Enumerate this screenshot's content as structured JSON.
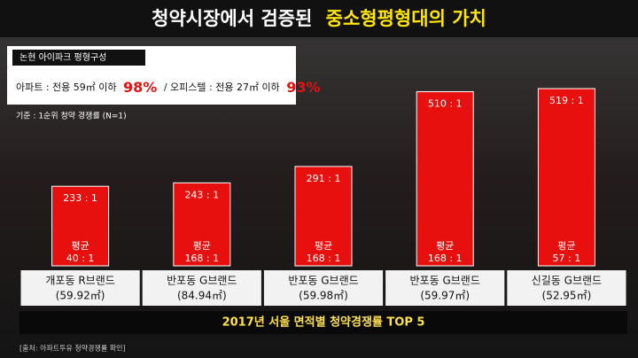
{
  "chart_data": {
    "type": "bar",
    "title": "청약시장에서 검증된",
    "title_highlight": "중소형평형대의 가치",
    "info_title": "논현 아이파크 평형구성",
    "info_apt": "아파트 : 전용 59㎡ 이하",
    "info_apt_share": "98%",
    "info_office": "/ 오피스텔 : 전용 27㎡ 이하",
    "info_office_share": "93%",
    "note": "기준 : 1순위 청약 경쟁률 (N=1)",
    "categories": [
      "개포동 R브랜드",
      "반포동 G브랜드",
      "반포동 G브랜드",
      "반포동 G브랜드",
      "신길동 G브랜드"
    ],
    "areas": [
      "(59.92㎡)",
      "(84.94㎡)",
      "(59.98㎡)",
      "(59.97㎡)",
      "(52.95㎡)"
    ],
    "values": [
      233,
      243,
      291,
      510,
      519
    ],
    "value_labels": [
      "233 : 1",
      "243 : 1",
      "291 : 1",
      "510 : 1",
      "519 : 1"
    ],
    "average_title": "평균",
    "average_labels": [
      "40 : 1",
      "168 : 1",
      "168 : 1",
      "168 : 1",
      "57 : 1"
    ],
    "color": "#e8100f",
    "caption": "2017년 서울 면적별 청약경쟁률 TOP 5",
    "source": "[출처: 아파트투유 청약경쟁률 확인]"
  }
}
